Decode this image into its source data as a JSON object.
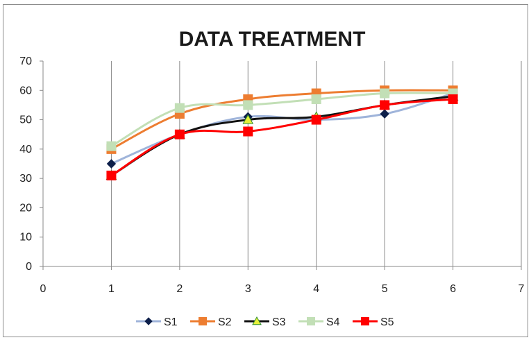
{
  "chart_data": {
    "type": "line",
    "title": "DATA TREATMENT",
    "xlabel": "",
    "ylabel": "",
    "xlim": [
      0,
      7
    ],
    "ylim": [
      0,
      70
    ],
    "xticks": [
      "0",
      "1",
      "2",
      "3",
      "4",
      "5",
      "6",
      "7"
    ],
    "yticks": [
      "0",
      "10",
      "20",
      "30",
      "40",
      "50",
      "60",
      "70"
    ],
    "grid": "vertical",
    "legend_position": "bottom",
    "x": [
      1,
      2,
      3,
      4,
      5,
      6
    ],
    "series": [
      {
        "name": "S1",
        "values": [
          35,
          45,
          51,
          50,
          52,
          59
        ],
        "color": "#9fb4da",
        "marker_color": "#0d1f4a",
        "marker": "diamond"
      },
      {
        "name": "S2",
        "values": [
          40,
          52,
          57,
          59,
          60,
          60
        ],
        "color": "#ed7d31",
        "marker_color": "#ed7d31",
        "marker": "square"
      },
      {
        "name": "S3",
        "values": [
          31,
          45,
          50,
          51,
          55,
          58
        ],
        "color": "#111111",
        "marker_color": "#e8f03a",
        "marker": "triangle"
      },
      {
        "name": "S4",
        "values": [
          41,
          54,
          55,
          57,
          59,
          59
        ],
        "color": "#c2dfb6",
        "marker_color": "#c2dfb6",
        "marker": "square"
      },
      {
        "name": "S5",
        "values": [
          31,
          45,
          46,
          50,
          55,
          57
        ],
        "color": "#ff0000",
        "marker_color": "#ff0000",
        "marker": "square"
      }
    ]
  }
}
